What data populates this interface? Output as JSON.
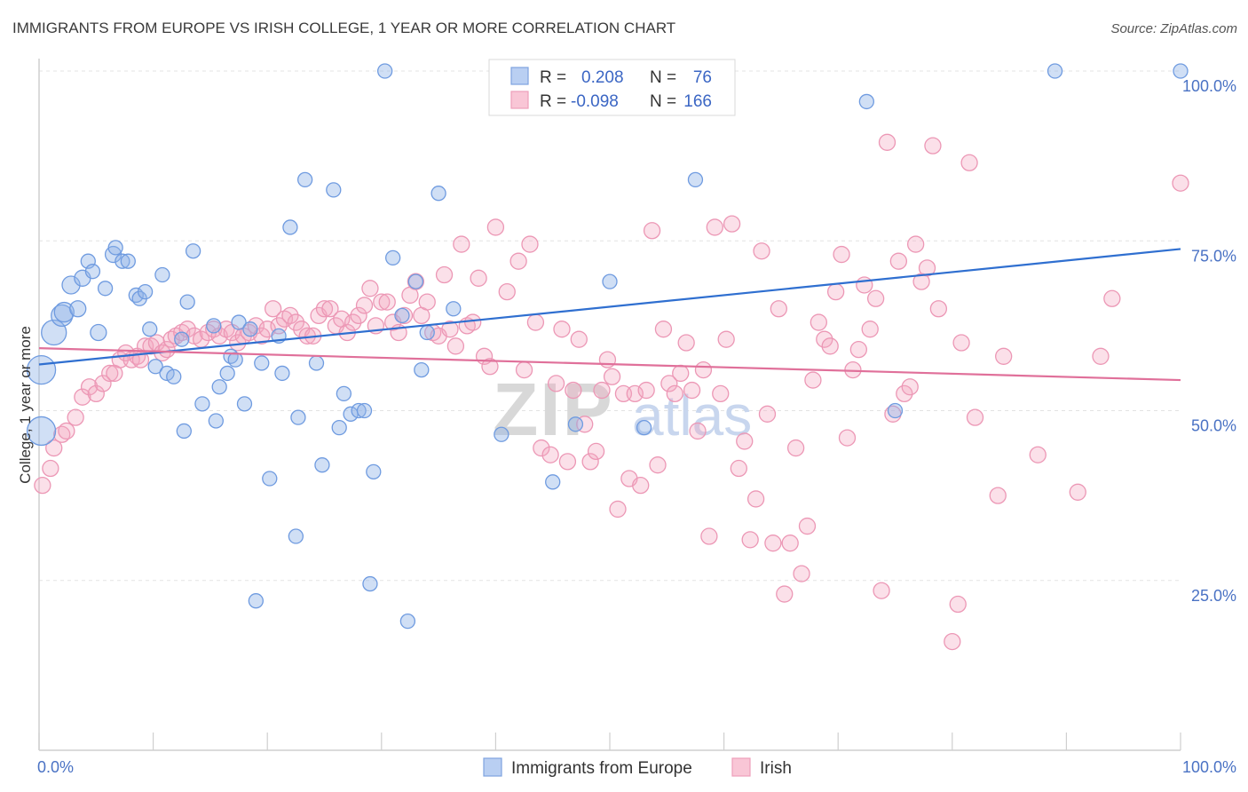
{
  "title": "IMMIGRANTS FROM EUROPE VS IRISH COLLEGE, 1 YEAR OR MORE CORRELATION CHART",
  "source": "Source: ZipAtlas.com",
  "watermark": {
    "zip": "ZIP",
    "atlas": "atlas"
  },
  "colors": {
    "blue": "#8fb3e8",
    "blue_line": "#2f6fd0",
    "pink": "#f3a6c0",
    "pink_line": "#e0709a"
  },
  "chart_data": {
    "type": "scatter",
    "ylabel": "College, 1 year or more",
    "x_ticks": [
      "0.0%",
      "100.0%"
    ],
    "y_ticks": [
      "25.0%",
      "50.0%",
      "75.0%",
      "100.0%"
    ],
    "xlim": [
      0,
      100
    ],
    "ylim": [
      0,
      100
    ],
    "legend": {
      "rows": [
        {
          "r_label": "R =",
          "r_value": "0.208",
          "n_label": "N =",
          "n_value": "76"
        },
        {
          "r_label": "R =",
          "r_value": "-0.098",
          "n_label": "N =",
          "n_value": "166"
        }
      ],
      "placement": "top-center"
    },
    "series": [
      {
        "name": "Immigrants from Europe",
        "color": "#8fb3e8",
        "trend": {
          "x": [
            0,
            100
          ],
          "y": [
            56.8,
            73.8
          ]
        },
        "points": [
          [
            0.2,
            47,
            16
          ],
          [
            0.2,
            56,
            16
          ],
          [
            1.3,
            61.5,
            14
          ],
          [
            2,
            64,
            12
          ],
          [
            2.2,
            64.5,
            11
          ],
          [
            2.8,
            68.5,
            10
          ],
          [
            3.4,
            65,
            9
          ],
          [
            3.8,
            69.5,
            9
          ],
          [
            4.3,
            72,
            8
          ],
          [
            4.7,
            70.5,
            8
          ],
          [
            5.2,
            61.5,
            9
          ],
          [
            5.8,
            68,
            8
          ],
          [
            6.5,
            73,
            9
          ],
          [
            6.7,
            74,
            8
          ],
          [
            7.3,
            72,
            8
          ],
          [
            7.8,
            72,
            8
          ],
          [
            8.5,
            67,
            8
          ],
          [
            8.8,
            66.5,
            8
          ],
          [
            9.3,
            67.5,
            8
          ],
          [
            9.7,
            62,
            8
          ],
          [
            10.2,
            56.5,
            8
          ],
          [
            10.8,
            70,
            8
          ],
          [
            11.2,
            55.5,
            8
          ],
          [
            11.8,
            55,
            8
          ],
          [
            12.5,
            60.5,
            8
          ],
          [
            12.7,
            47,
            8
          ],
          [
            13,
            66,
            8
          ],
          [
            13.5,
            73.5,
            8
          ],
          [
            14.3,
            51,
            8
          ],
          [
            15.3,
            62.5,
            8
          ],
          [
            15.5,
            48.5,
            8
          ],
          [
            15.8,
            53.5,
            8
          ],
          [
            16.5,
            55.5,
            8
          ],
          [
            16.8,
            58,
            8
          ],
          [
            17.2,
            57.5,
            8
          ],
          [
            17.5,
            63,
            8
          ],
          [
            18,
            51,
            8
          ],
          [
            18.5,
            62,
            8
          ],
          [
            19,
            22,
            8
          ],
          [
            19.5,
            57,
            8
          ],
          [
            20.2,
            40,
            8
          ],
          [
            21,
            61,
            8
          ],
          [
            21.3,
            55.5,
            8
          ],
          [
            22,
            77,
            8
          ],
          [
            22.5,
            31.5,
            8
          ],
          [
            22.7,
            49,
            8
          ],
          [
            23.3,
            84,
            8
          ],
          [
            24.3,
            57,
            8
          ],
          [
            24.8,
            42,
            8
          ],
          [
            25.8,
            82.5,
            8
          ],
          [
            26.3,
            47.5,
            8
          ],
          [
            26.7,
            52.5,
            8
          ],
          [
            27.3,
            49.5,
            8
          ],
          [
            28,
            50,
            8
          ],
          [
            28.5,
            50,
            8
          ],
          [
            29,
            24.5,
            8
          ],
          [
            29.3,
            41,
            8
          ],
          [
            30.3,
            100,
            8
          ],
          [
            31,
            72.5,
            8
          ],
          [
            31.8,
            64,
            8
          ],
          [
            32.3,
            19,
            8
          ],
          [
            33,
            69,
            8
          ],
          [
            33.5,
            56,
            8
          ],
          [
            34,
            61.5,
            8
          ],
          [
            35,
            82,
            8
          ],
          [
            36.3,
            65,
            8
          ],
          [
            40.5,
            46.5,
            8
          ],
          [
            45,
            39.5,
            8
          ],
          [
            47,
            48,
            8
          ],
          [
            50,
            69,
            8
          ],
          [
            53,
            47.5,
            8
          ],
          [
            57.5,
            84,
            8
          ],
          [
            72.5,
            95.5,
            8
          ],
          [
            75,
            50,
            8
          ],
          [
            89,
            100,
            8
          ],
          [
            100,
            100,
            8
          ]
        ]
      },
      {
        "name": "Irish",
        "color": "#f3a6c0",
        "trend": {
          "x": [
            0,
            100
          ],
          "y": [
            59.2,
            54.5
          ]
        },
        "points": [
          [
            0.3,
            39,
            9
          ],
          [
            1,
            41.5,
            9
          ],
          [
            1.3,
            44.5,
            9
          ],
          [
            2,
            46.5,
            9
          ],
          [
            2.4,
            47,
            9
          ],
          [
            3.2,
            49,
            9
          ],
          [
            3.8,
            52,
            9
          ],
          [
            4.4,
            53.5,
            9
          ],
          [
            5,
            52.5,
            9
          ],
          [
            5.6,
            54,
            9
          ],
          [
            6.2,
            55.5,
            9
          ],
          [
            6.6,
            55.5,
            9
          ],
          [
            7.1,
            57.5,
            9
          ],
          [
            7.6,
            58.5,
            9
          ],
          [
            8.1,
            57.5,
            9
          ],
          [
            8.6,
            58,
            9
          ],
          [
            8.9,
            57.5,
            9
          ],
          [
            9.3,
            59.5,
            9
          ],
          [
            9.8,
            59.5,
            9
          ],
          [
            10.3,
            60,
            9
          ],
          [
            10.8,
            58.5,
            9
          ],
          [
            11.2,
            59,
            9
          ],
          [
            11.6,
            60.5,
            9
          ],
          [
            12,
            61,
            9
          ],
          [
            12.5,
            61.5,
            9
          ],
          [
            13,
            62,
            9
          ],
          [
            13.6,
            61,
            9
          ],
          [
            14.2,
            60.5,
            9
          ],
          [
            14.8,
            61.5,
            9
          ],
          [
            15.3,
            62,
            9
          ],
          [
            15.8,
            61,
            9
          ],
          [
            16.4,
            62,
            9
          ],
          [
            16.9,
            61.5,
            9
          ],
          [
            17.4,
            60,
            9
          ],
          [
            17.9,
            61,
            9
          ],
          [
            18.4,
            61.5,
            9
          ],
          [
            19,
            62.5,
            9
          ],
          [
            19.5,
            61,
            9
          ],
          [
            20,
            62,
            9
          ],
          [
            20.5,
            65,
            9
          ],
          [
            21,
            62.5,
            9
          ],
          [
            21.5,
            63.5,
            9
          ],
          [
            22,
            64,
            9
          ],
          [
            22.5,
            63,
            9
          ],
          [
            23,
            62,
            9
          ],
          [
            23.5,
            61,
            9
          ],
          [
            24,
            61,
            9
          ],
          [
            24.5,
            64,
            9
          ],
          [
            25,
            65,
            9
          ],
          [
            25.5,
            65,
            9
          ],
          [
            26,
            62.5,
            9
          ],
          [
            26.5,
            63.5,
            9
          ],
          [
            27,
            61.5,
            9
          ],
          [
            27.5,
            63,
            9
          ],
          [
            28,
            64,
            9
          ],
          [
            28.5,
            65.5,
            9
          ],
          [
            29,
            68,
            9
          ],
          [
            29.5,
            62.5,
            9
          ],
          [
            30,
            66,
            9
          ],
          [
            30.5,
            66,
            9
          ],
          [
            31,
            63,
            9
          ],
          [
            31.5,
            61.5,
            9
          ],
          [
            32,
            64,
            9
          ],
          [
            32.5,
            67,
            9
          ],
          [
            33,
            69,
            9
          ],
          [
            33.5,
            64,
            9
          ],
          [
            34,
            66,
            9
          ],
          [
            34.5,
            61.5,
            9
          ],
          [
            35,
            61,
            9
          ],
          [
            35.5,
            70,
            9
          ],
          [
            36,
            62,
            9
          ],
          [
            36.5,
            59.5,
            9
          ],
          [
            37,
            74.5,
            9
          ],
          [
            37.5,
            62.5,
            9
          ],
          [
            38,
            63,
            9
          ],
          [
            38.5,
            69.5,
            9
          ],
          [
            39,
            58,
            9
          ],
          [
            39.5,
            56.5,
            9
          ],
          [
            40,
            77,
            9
          ],
          [
            41,
            67.5,
            9
          ],
          [
            42,
            72,
            9
          ],
          [
            42.5,
            56,
            9
          ],
          [
            43,
            74.5,
            9
          ],
          [
            43.5,
            63,
            9
          ],
          [
            44,
            44.5,
            9
          ],
          [
            44.8,
            43.5,
            9
          ],
          [
            45.3,
            54,
            9
          ],
          [
            45.8,
            62,
            9
          ],
          [
            46.3,
            42.5,
            9
          ],
          [
            46.8,
            53,
            9
          ],
          [
            47.3,
            60.5,
            9
          ],
          [
            47.8,
            48,
            9
          ],
          [
            48.3,
            42.5,
            9
          ],
          [
            48.8,
            44,
            9
          ],
          [
            49.3,
            53,
            9
          ],
          [
            49.8,
            57.5,
            9
          ],
          [
            50.2,
            55,
            9
          ],
          [
            50.7,
            35.5,
            9
          ],
          [
            51.2,
            52.5,
            9
          ],
          [
            51.7,
            40,
            9
          ],
          [
            52.2,
            52.5,
            9
          ],
          [
            52.7,
            39,
            9
          ],
          [
            53.2,
            53,
            9
          ],
          [
            53.7,
            76.5,
            9
          ],
          [
            54.2,
            42,
            9
          ],
          [
            54.7,
            62,
            9
          ],
          [
            55.2,
            54,
            9
          ],
          [
            55.7,
            52.5,
            9
          ],
          [
            56.2,
            55.5,
            9
          ],
          [
            56.7,
            60,
            9
          ],
          [
            57.2,
            53,
            9
          ],
          [
            57.7,
            47,
            9
          ],
          [
            58.2,
            56,
            9
          ],
          [
            58.7,
            31.5,
            9
          ],
          [
            59.2,
            77,
            9
          ],
          [
            59.7,
            52.5,
            9
          ],
          [
            60.2,
            60.5,
            9
          ],
          [
            60.7,
            77.5,
            9
          ],
          [
            61.3,
            41.5,
            9
          ],
          [
            61.8,
            45.5,
            9
          ],
          [
            62.3,
            31,
            9
          ],
          [
            62.8,
            37,
            9
          ],
          [
            63.3,
            73.5,
            9
          ],
          [
            63.8,
            49.5,
            9
          ],
          [
            64.3,
            30.5,
            9
          ],
          [
            64.8,
            65,
            9
          ],
          [
            65.3,
            23,
            9
          ],
          [
            65.8,
            30.5,
            9
          ],
          [
            66.3,
            44.5,
            9
          ],
          [
            66.8,
            26,
            9
          ],
          [
            67.3,
            33,
            9
          ],
          [
            67.8,
            54.5,
            9
          ],
          [
            68.3,
            63,
            9
          ],
          [
            68.8,
            60.5,
            9
          ],
          [
            69.3,
            59.5,
            9
          ],
          [
            69.8,
            67.5,
            9
          ],
          [
            70.3,
            73,
            9
          ],
          [
            70.8,
            46,
            9
          ],
          [
            71.3,
            56,
            9
          ],
          [
            71.8,
            59,
            9
          ],
          [
            72.3,
            68.5,
            9
          ],
          [
            72.8,
            62,
            9
          ],
          [
            73.3,
            66.5,
            9
          ],
          [
            73.8,
            23.5,
            9
          ],
          [
            74.3,
            89.5,
            9
          ],
          [
            74.8,
            49.5,
            9
          ],
          [
            75.3,
            72,
            9
          ],
          [
            75.8,
            52.5,
            9
          ],
          [
            76.3,
            53.5,
            9
          ],
          [
            76.8,
            74.5,
            9
          ],
          [
            77.3,
            69,
            9
          ],
          [
            77.8,
            71,
            9
          ],
          [
            78.3,
            89,
            9
          ],
          [
            78.8,
            65,
            9
          ],
          [
            80,
            16,
            9
          ],
          [
            80.5,
            21.5,
            9
          ],
          [
            80.8,
            60,
            9
          ],
          [
            81.5,
            86.5,
            9
          ],
          [
            82,
            49,
            9
          ],
          [
            84,
            37.5,
            9
          ],
          [
            84.5,
            58,
            9
          ],
          [
            87.5,
            43.5,
            9
          ],
          [
            91,
            38,
            9
          ],
          [
            93,
            58,
            9
          ],
          [
            94,
            66.5,
            9
          ],
          [
            100,
            83.5,
            9
          ]
        ]
      }
    ]
  }
}
